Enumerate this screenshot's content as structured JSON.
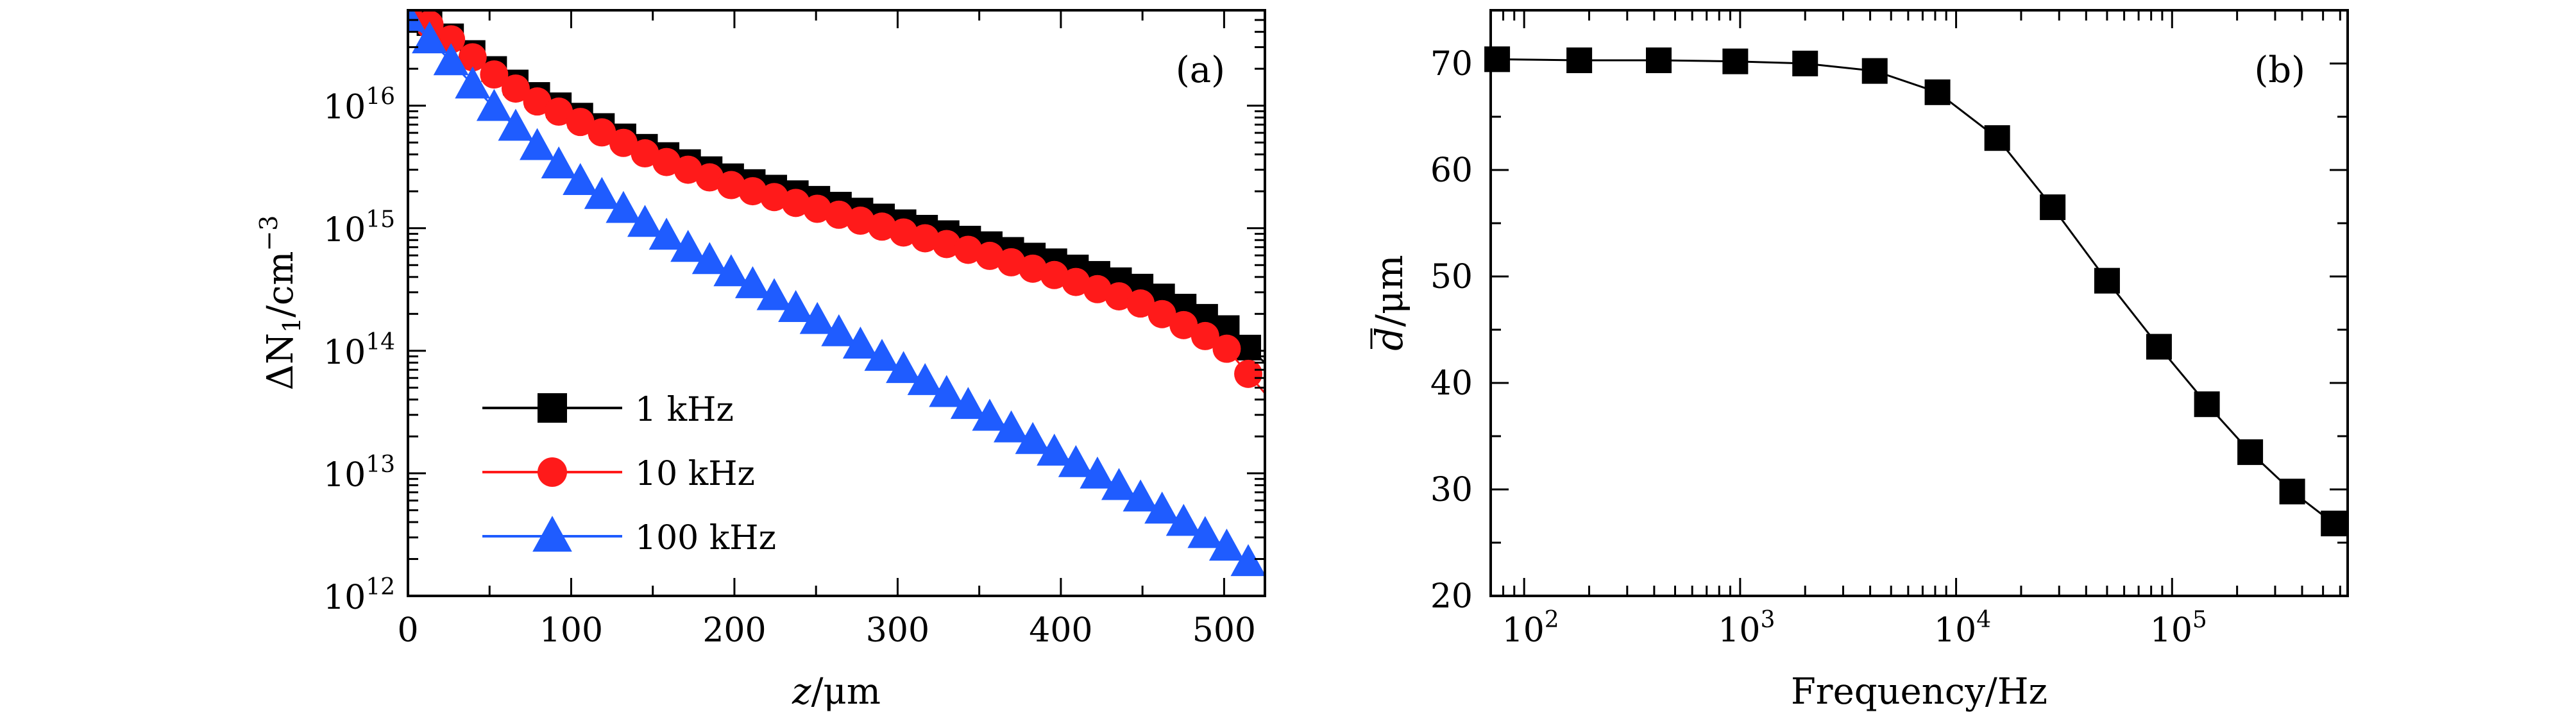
{
  "colors": {
    "series_1khz": "#000000",
    "series_10khz": "#ff1a1a",
    "series_100khz": "#1f5cff",
    "axes": "#000000",
    "background": "#ffffff"
  },
  "chart_data": [
    {
      "type": "line",
      "panel_label": "(a)",
      "xlabel_var": "z",
      "xlabel_unit": "/μm",
      "ylabel_prefix": "ΔN",
      "ylabel_sub": "1",
      "ylabel_unit": "/cm",
      "ylabel_sup": "−3",
      "yscale": "log",
      "xlim": [
        0,
        525
      ],
      "ylim": [
        1000000000000.0,
        6e+16
      ],
      "x_ticks": [
        0,
        100,
        200,
        300,
        400,
        500
      ],
      "x_tick_labels": [
        "0",
        "100",
        "200",
        "300",
        "400",
        "500"
      ],
      "y_ticks": [
        1000000000000.0,
        10000000000000.0,
        100000000000000.0,
        1000000000000000.0,
        1e+16
      ],
      "y_tick_base": "10",
      "y_tick_exps": [
        "12",
        "13",
        "14",
        "15",
        "16"
      ],
      "legend_position": "bottom-left",
      "series": [
        {
          "name": "1 kHz",
          "marker": "square",
          "color_key": "series_1khz",
          "x": [
            0,
            25,
            50,
            75,
            100,
            150,
            200,
            250,
            300,
            350,
            400,
            450,
            500,
            525
          ],
          "y": [
            6e+16,
            3.8e+16,
            2.1e+16,
            1.3e+16,
            9000000000000000.0,
            4300000000000000.0,
            2600000000000000.0,
            1750000000000000.0,
            1150000000000000.0,
            780000000000000.0,
            520000000000000.0,
            330000000000000.0,
            160000000000000.0,
            80000000000000.0
          ]
        },
        {
          "name": "10 kHz",
          "marker": "circle",
          "color_key": "series_10khz",
          "x": [
            0,
            25,
            50,
            75,
            100,
            150,
            200,
            250,
            300,
            350,
            400,
            450,
            500,
            525
          ],
          "y": [
            6e+16,
            3.6e+16,
            1.9e+16,
            1.15e+16,
            8000000000000000.0,
            3800000000000000.0,
            2200000000000000.0,
            1450000000000000.0,
            950000000000000.0,
            630000000000000.0,
            400000000000000.0,
            240000000000000.0,
            110000000000000.0,
            45000000000000.0
          ]
        },
        {
          "name": "100 kHz",
          "marker": "triangle",
          "color_key": "series_100khz",
          "x": [
            0,
            25,
            50,
            75,
            100,
            150,
            200,
            250,
            300,
            350,
            400,
            450,
            500,
            525
          ],
          "y": [
            5.2e+16,
            2.4e+16,
            1.05e+16,
            5200000000000000.0,
            2700000000000000.0,
            1000000000000000.0,
            420000000000000.0,
            180000000000000.0,
            75000000000000.0,
            32000000000000.0,
            14000000000000.0,
            6200000000000.0,
            2600000000000.0,
            1500000000000.0
          ]
        }
      ]
    },
    {
      "type": "line",
      "panel_label": "(b)",
      "xlabel": "Frequency/Hz",
      "ylabel_var": "d",
      "ylabel_unit": "/μm",
      "xscale": "log",
      "xlim": [
        70,
        650000
      ],
      "ylim": [
        20,
        75
      ],
      "x_ticks": [
        100,
        1000,
        10000,
        100000
      ],
      "x_tick_base": "10",
      "x_tick_exps": [
        "2",
        "3",
        "4",
        "5"
      ],
      "y_ticks": [
        20,
        30,
        40,
        50,
        60,
        70
      ],
      "y_tick_labels": [
        "20",
        "30",
        "40",
        "50",
        "60",
        "70"
      ],
      "series": [
        {
          "name": "d",
          "marker": "square",
          "color_key": "series_1khz",
          "x": [
            75,
            180,
            420,
            950,
            2000,
            4200,
            8200,
            15500,
            28000,
            50000,
            87000,
            145000,
            230000,
            360000,
            560000
          ],
          "y": [
            70.4,
            70.3,
            70.3,
            70.2,
            70.0,
            69.3,
            67.3,
            63.0,
            56.5,
            49.6,
            43.4,
            38.0,
            33.5,
            29.8,
            26.8
          ]
        }
      ]
    }
  ]
}
